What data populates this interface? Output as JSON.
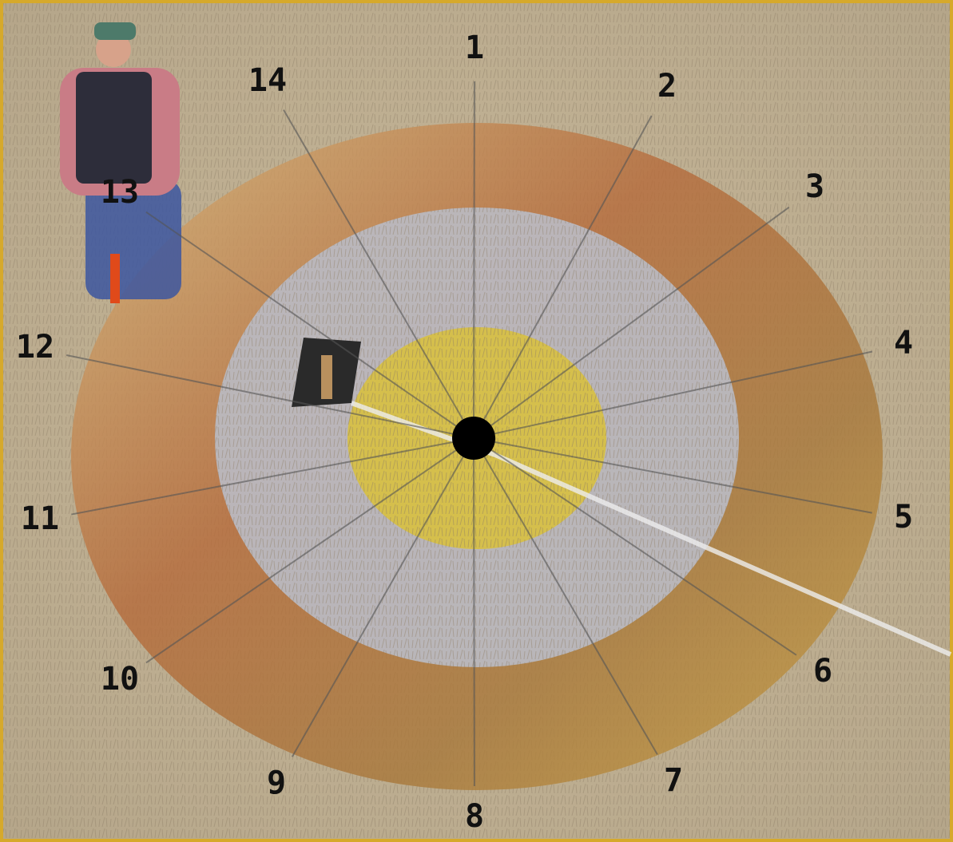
{
  "labels": [
    "1",
    "2",
    "3",
    "4",
    "5",
    "6",
    "7",
    "8",
    "9",
    "10",
    "11",
    "12",
    "13",
    "14"
  ]
}
